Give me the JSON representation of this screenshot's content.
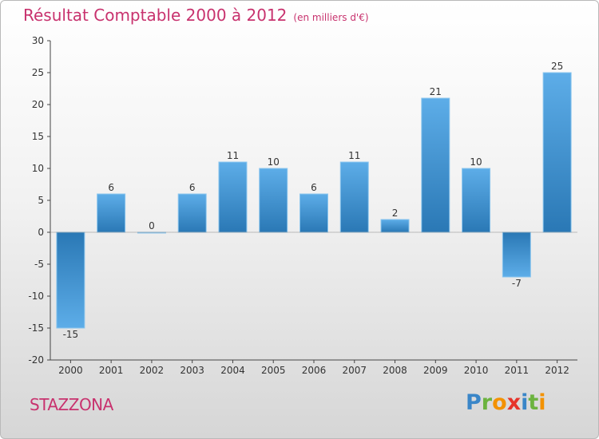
{
  "header": {
    "title": "Résultat Comptable 2000 à 2012",
    "subtitle": "(en milliers d'€)"
  },
  "commune": "STAZZONA",
  "logo": {
    "letters": [
      "P",
      "r",
      "o",
      "x",
      "i",
      "t",
      "i"
    ],
    "colors": [
      "#3a86c8",
      "#6cb33f",
      "#f39200",
      "#e6332a",
      "#3a86c8",
      "#6cb33f",
      "#f39200"
    ]
  },
  "colors": {
    "bar_top": "#5dade8",
    "bar_bottom": "#2a78b5",
    "axis": "#444444",
    "title": "#c8326e"
  },
  "chart_data": {
    "type": "bar",
    "title": "Résultat Comptable 2000 à 2012",
    "xlabel": "",
    "ylabel": "",
    "ylim": [
      -20,
      30
    ],
    "yticks": [
      -20,
      -15,
      -10,
      -5,
      0,
      5,
      10,
      15,
      20,
      25,
      30
    ],
    "categories": [
      "2000",
      "2001",
      "2002",
      "2003",
      "2004",
      "2005",
      "2006",
      "2007",
      "2008",
      "2009",
      "2010",
      "2011",
      "2012"
    ],
    "values": [
      -15,
      6,
      0,
      6,
      11,
      10,
      6,
      11,
      2,
      21,
      10,
      -7,
      25
    ],
    "labels": [
      "-15",
      "6",
      "0",
      "6",
      "11",
      "10",
      "6",
      "11",
      "2",
      "21",
      "10",
      "-7",
      "25"
    ]
  }
}
